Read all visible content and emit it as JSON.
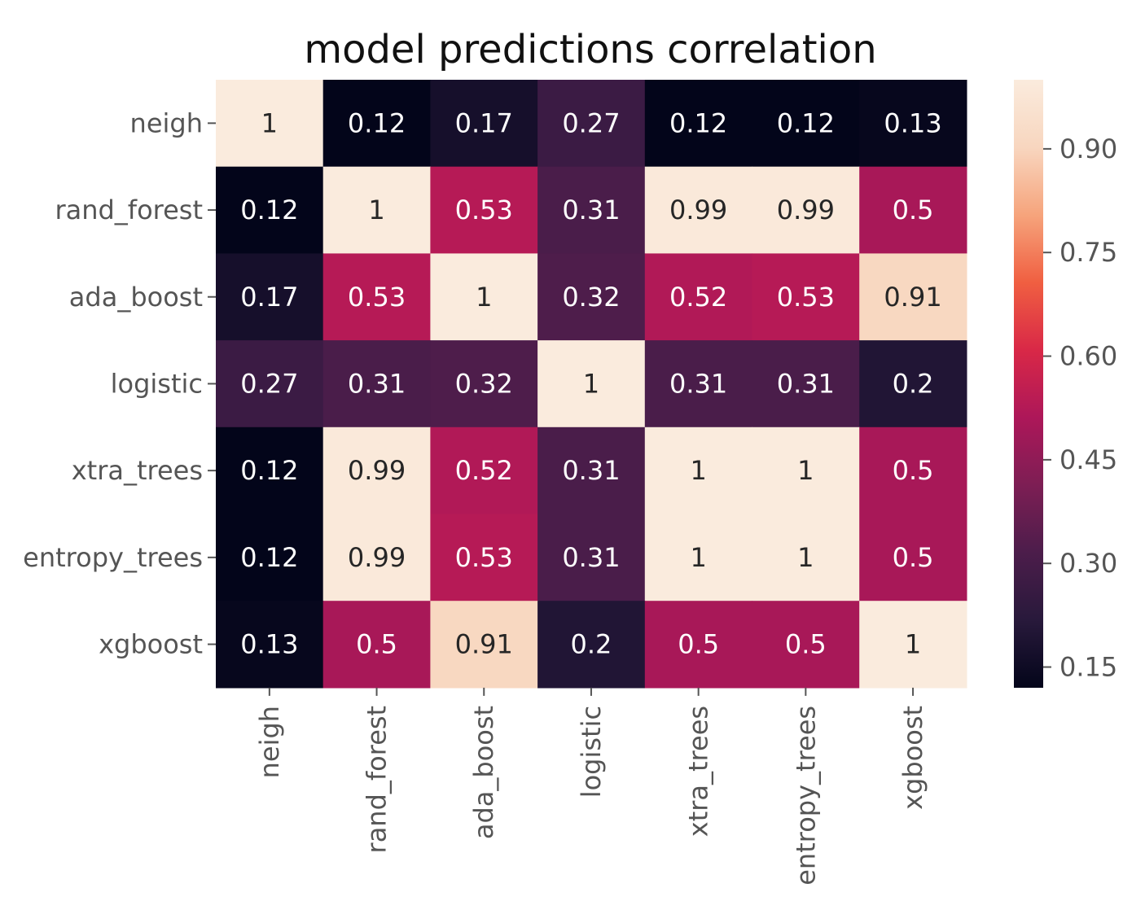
{
  "chart_data": {
    "type": "heatmap",
    "title": "model predictions correlation",
    "row_labels": [
      "neigh",
      "rand_forest",
      "ada_boost",
      "logistic",
      "xtra_trees",
      "entropy_trees",
      "xgboost"
    ],
    "col_labels": [
      "neigh",
      "rand_forest",
      "ada_boost",
      "logistic",
      "xtra_trees",
      "entropy_trees",
      "xgboost"
    ],
    "values": [
      [
        1,
        0.12,
        0.17,
        0.27,
        0.12,
        0.12,
        0.13
      ],
      [
        0.12,
        1,
        0.53,
        0.31,
        0.99,
        0.99,
        0.5
      ],
      [
        0.17,
        0.53,
        1,
        0.32,
        0.52,
        0.53,
        0.91
      ],
      [
        0.27,
        0.31,
        0.32,
        1,
        0.31,
        0.31,
        0.2
      ],
      [
        0.12,
        0.99,
        0.52,
        0.31,
        1,
        1,
        0.5
      ],
      [
        0.12,
        0.99,
        0.53,
        0.31,
        1,
        1,
        0.5
      ],
      [
        0.13,
        0.5,
        0.91,
        0.2,
        0.5,
        0.5,
        1
      ]
    ],
    "value_labels": [
      [
        "1",
        "0.12",
        "0.17",
        "0.27",
        "0.12",
        "0.12",
        "0.13"
      ],
      [
        "0.12",
        "1",
        "0.53",
        "0.31",
        "0.99",
        "0.99",
        "0.5"
      ],
      [
        "0.17",
        "0.53",
        "1",
        "0.32",
        "0.52",
        "0.53",
        "0.91"
      ],
      [
        "0.27",
        "0.31",
        "0.32",
        "1",
        "0.31",
        "0.31",
        "0.2"
      ],
      [
        "0.12",
        "0.99",
        "0.52",
        "0.31",
        "1",
        "1",
        "0.5"
      ],
      [
        "0.12",
        "0.99",
        "0.53",
        "0.31",
        "1",
        "1",
        "0.5"
      ],
      [
        "0.13",
        "0.5",
        "0.91",
        "0.2",
        "0.5",
        "0.5",
        "1"
      ]
    ],
    "colorbar": {
      "vmin": 0.12,
      "vmax": 1.0,
      "ticks": [
        0.15,
        0.3,
        0.45,
        0.6,
        0.75,
        0.9
      ],
      "tick_labels": [
        "0.15",
        "0.30",
        "0.45",
        "0.60",
        "0.75",
        "0.90"
      ]
    },
    "colormap": "rocket",
    "colormap_stops": [
      "#03051a",
      "#28193b",
      "#4c1d4b",
      "#7d1e54",
      "#ad1759",
      "#d92847",
      "#f05f41",
      "#f6a47c",
      "#f8d6bf",
      "#faebdd"
    ],
    "text_colors": {
      "dark": "#262626",
      "light": "#ffffff"
    }
  }
}
